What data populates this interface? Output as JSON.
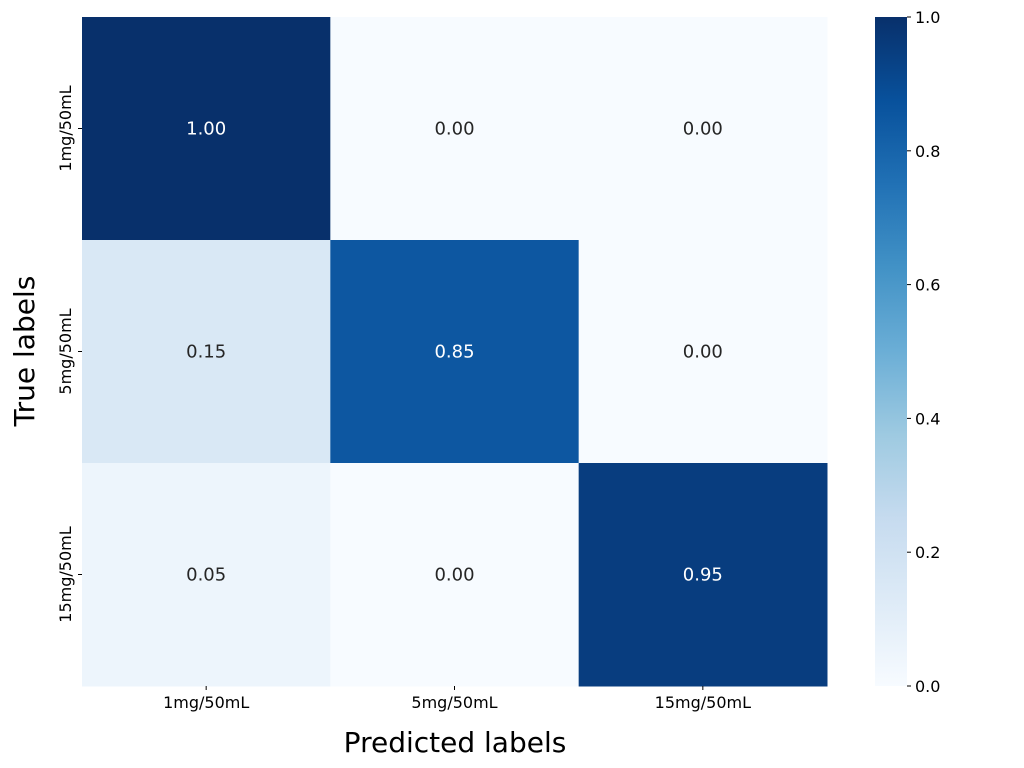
{
  "chart_data": {
    "type": "heatmap",
    "title": "",
    "xlabel": "Predicted labels",
    "ylabel": "True labels",
    "x_categories": [
      "1mg/50mL",
      "5mg/50mL",
      "15mg/50mL"
    ],
    "y_categories": [
      "1mg/50mL",
      "5mg/50mL",
      "15mg/50mL"
    ],
    "values": [
      [
        1.0,
        0.0,
        0.0
      ],
      [
        0.15,
        0.85,
        0.0
      ],
      [
        0.05,
        0.0,
        0.95
      ]
    ],
    "annotations": [
      [
        "1.00",
        "0.00",
        "0.00"
      ],
      [
        "0.15",
        "0.85",
        "0.00"
      ],
      [
        "0.05",
        "0.00",
        "0.95"
      ]
    ],
    "colormap": "Blues",
    "vmin": 0.0,
    "vmax": 1.0,
    "colorbar_ticks": [
      0.0,
      0.2,
      0.4,
      0.6,
      0.8,
      1.0
    ],
    "colorbar_tick_labels": [
      "0.0",
      "0.2",
      "0.4",
      "0.6",
      "0.8",
      "1.0"
    ],
    "colors": {
      "blues_stops": [
        "#f7fbff",
        "#deebf7",
        "#c6dbef",
        "#9ecae1",
        "#6baed6",
        "#4292c6",
        "#2171b5",
        "#08519c",
        "#08306b"
      ],
      "light_text": "#ffffff",
      "dark_text": "#262626"
    }
  }
}
